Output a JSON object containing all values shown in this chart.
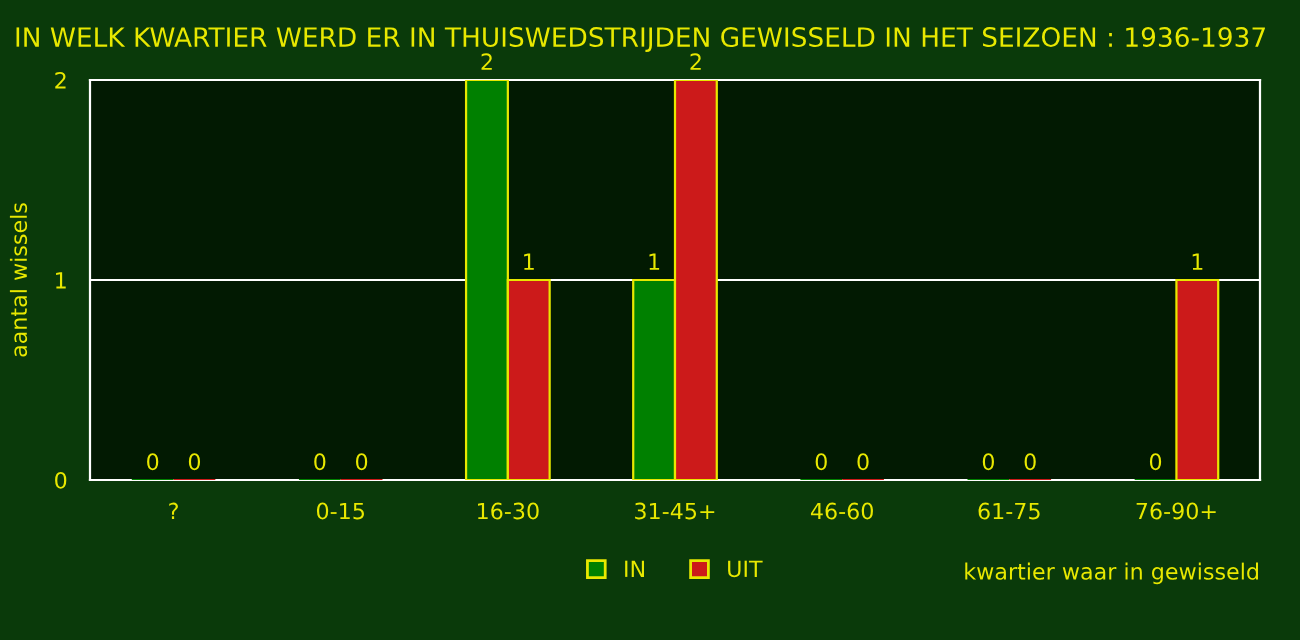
{
  "chart_data": {
    "type": "bar",
    "title": "IN WELK KWARTIER WERD ER IN THUISWEDSTRIJDEN GEWISSELD IN HET SEIZOEN : 1936-1937",
    "xlabel": "kwartier waar in gewisseld",
    "ylabel": "aantal wissels",
    "categories": [
      "?",
      "0-15",
      "16-30",
      "31-45+",
      "46-60",
      "61-75",
      "76-90+"
    ],
    "series": [
      {
        "name": "IN",
        "color": "#008000",
        "values": [
          0,
          0,
          2,
          1,
          0,
          0,
          0
        ]
      },
      {
        "name": "UIT",
        "color": "#cc1a1a",
        "values": [
          0,
          0,
          1,
          2,
          0,
          0,
          1
        ]
      }
    ],
    "ylim": [
      0,
      2
    ],
    "yticks": [
      0,
      1,
      2
    ],
    "grid": "y",
    "legend": "bottom",
    "data_labels": true
  }
}
